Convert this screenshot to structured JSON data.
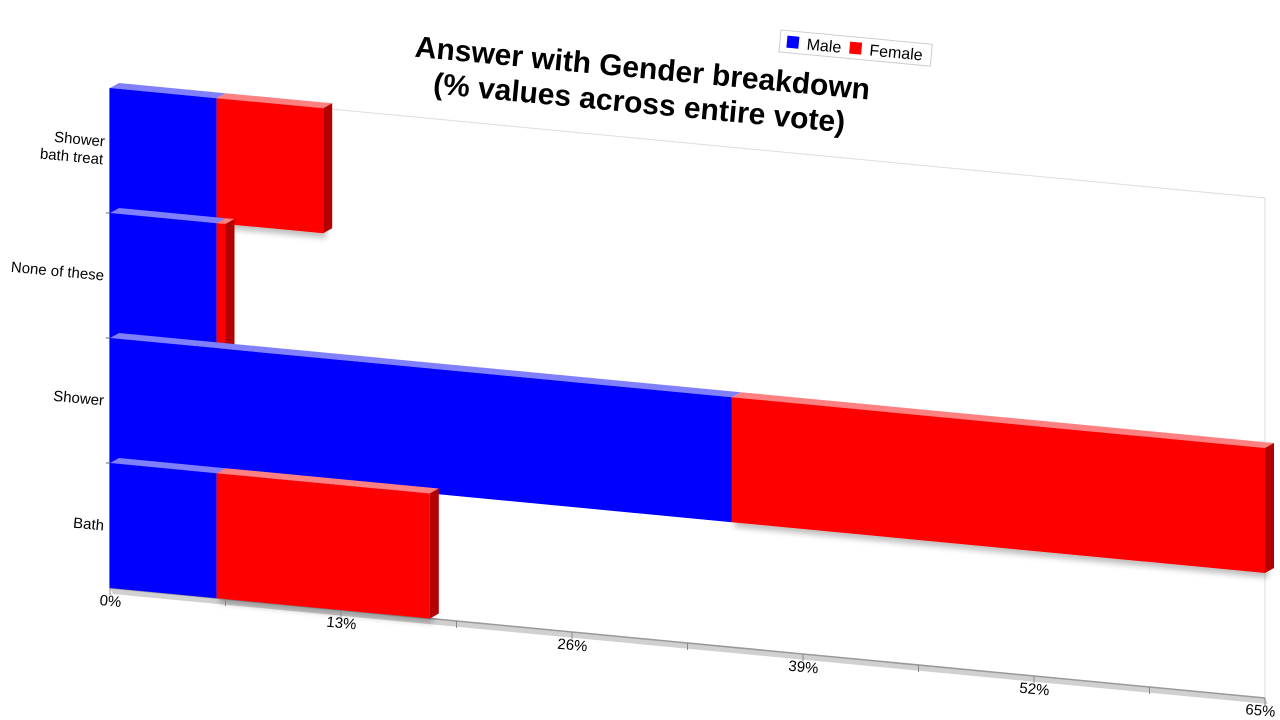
{
  "chart_data": {
    "type": "bar",
    "orientation": "horizontal",
    "stacked": true,
    "title": "Answer with Gender breakdown",
    "subtitle": "(% values across entire vote)",
    "categories": [
      "Shower bath treat",
      "None of these",
      "Shower",
      "Bath"
    ],
    "category_lines": [
      [
        "Shower",
        "bath treat"
      ],
      [
        "None of these"
      ],
      [
        "Shower"
      ],
      [
        "Bath"
      ]
    ],
    "series": [
      {
        "name": "Male",
        "color": "#0000ff",
        "values": [
          6,
          6,
          35,
          6
        ]
      },
      {
        "name": "Female",
        "color": "#ff0000",
        "values": [
          6,
          0.5,
          30,
          12
        ]
      }
    ],
    "xlim": [
      0,
      65
    ],
    "xticks": [
      "0%",
      "13%",
      "26%",
      "39%",
      "52%",
      "65%"
    ],
    "legend_position": "top-right",
    "grid": false
  }
}
